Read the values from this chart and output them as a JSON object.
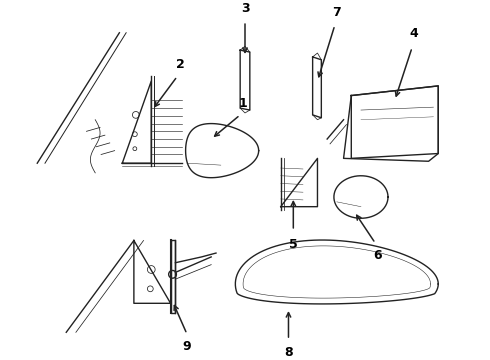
{
  "bg_color": "#ffffff",
  "line_color": "#222222",
  "label_color": "#000000",
  "label_fontsize": 9,
  "lw_main": 1.0,
  "lw_thin": 0.55
}
